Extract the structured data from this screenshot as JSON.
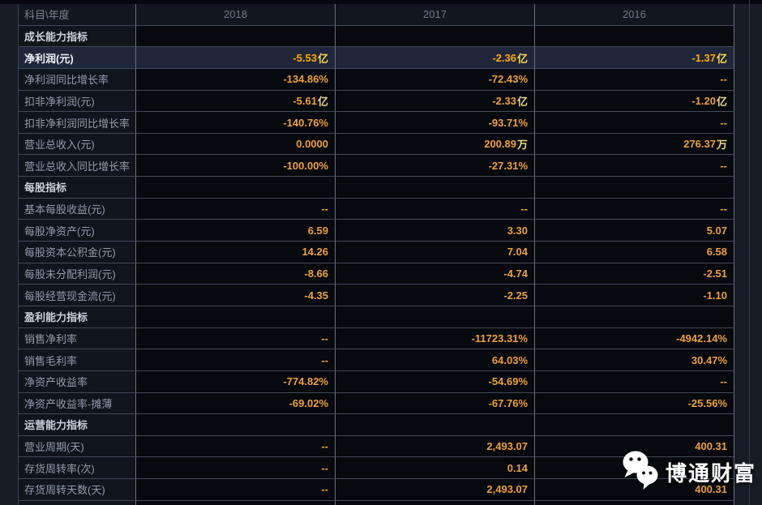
{
  "table": {
    "header": {
      "label": "科目\\年度",
      "years": [
        "2018",
        "2017",
        "2016"
      ]
    },
    "rows": [
      {
        "type": "section",
        "label": "成长能力指标"
      },
      {
        "type": "data",
        "highlight": true,
        "label": "净利润(元)",
        "values": [
          "-5.53亿",
          "-2.36亿",
          "-1.37亿"
        ]
      },
      {
        "type": "data",
        "label": "净利润同比增长率",
        "values": [
          "-134.86%",
          "-72.43%",
          "--"
        ]
      },
      {
        "type": "data",
        "label": "扣非净利润(元)",
        "values": [
          "-5.61亿",
          "-2.33亿",
          "-1.20亿"
        ]
      },
      {
        "type": "data",
        "label": "扣非净利润同比增长率",
        "values": [
          "-140.76%",
          "-93.71%",
          "--"
        ]
      },
      {
        "type": "data",
        "label": "营业总收入(元)",
        "values": [
          "0.0000",
          "200.89万",
          "276.37万"
        ]
      },
      {
        "type": "data",
        "label": "营业总收入同比增长率",
        "values": [
          "-100.00%",
          "-27.31%",
          "--"
        ]
      },
      {
        "type": "section",
        "label": "每股指标"
      },
      {
        "type": "data",
        "label": "基本每股收益(元)",
        "values": [
          "--",
          "--",
          "--"
        ]
      },
      {
        "type": "data",
        "label": "每股净资产(元)",
        "values": [
          "6.59",
          "3.30",
          "5.07"
        ]
      },
      {
        "type": "data",
        "label": "每股资本公积金(元)",
        "values": [
          "14.26",
          "7.04",
          "6.58"
        ]
      },
      {
        "type": "data",
        "label": "每股未分配利润(元)",
        "values": [
          "-8.66",
          "-4.74",
          "-2.51"
        ]
      },
      {
        "type": "data",
        "label": "每股经营现金流(元)",
        "values": [
          "-4.35",
          "-2.25",
          "-1.10"
        ]
      },
      {
        "type": "section",
        "label": "盈利能力指标"
      },
      {
        "type": "data",
        "label": "销售净利率",
        "values": [
          "--",
          "-11723.31%",
          "-4942.14%"
        ]
      },
      {
        "type": "data",
        "label": "销售毛利率",
        "values": [
          "--",
          "64.03%",
          "30.47%"
        ]
      },
      {
        "type": "data",
        "label": "净资产收益率",
        "values": [
          "-774.82%",
          "-54.69%",
          "--"
        ]
      },
      {
        "type": "data",
        "label": "净资产收益率-摊薄",
        "values": [
          "-69.02%",
          "-67.76%",
          "-25.56%"
        ]
      },
      {
        "type": "section",
        "label": "运营能力指标"
      },
      {
        "type": "data",
        "label": "营业周期(天)",
        "values": [
          "--",
          "2,493.07",
          "400.31"
        ]
      },
      {
        "type": "data",
        "label": "存货周转率(次)",
        "values": [
          "--",
          "0.14",
          ""
        ]
      },
      {
        "type": "data",
        "label": "存货周转天数(天)",
        "values": [
          "--",
          "2,493.07",
          "400.31"
        ]
      }
    ]
  },
  "watermark": {
    "icon": "wechat-icon",
    "text": "博通财富"
  },
  "colors": {
    "page_background": "#171c26",
    "cell_background": "#06090d",
    "label_background": "#10141b",
    "highlight_background": "#202639",
    "value_orange": "#efa03a",
    "unit_yellow": "#e9d87f",
    "highlight_value": "#ffaa00"
  }
}
